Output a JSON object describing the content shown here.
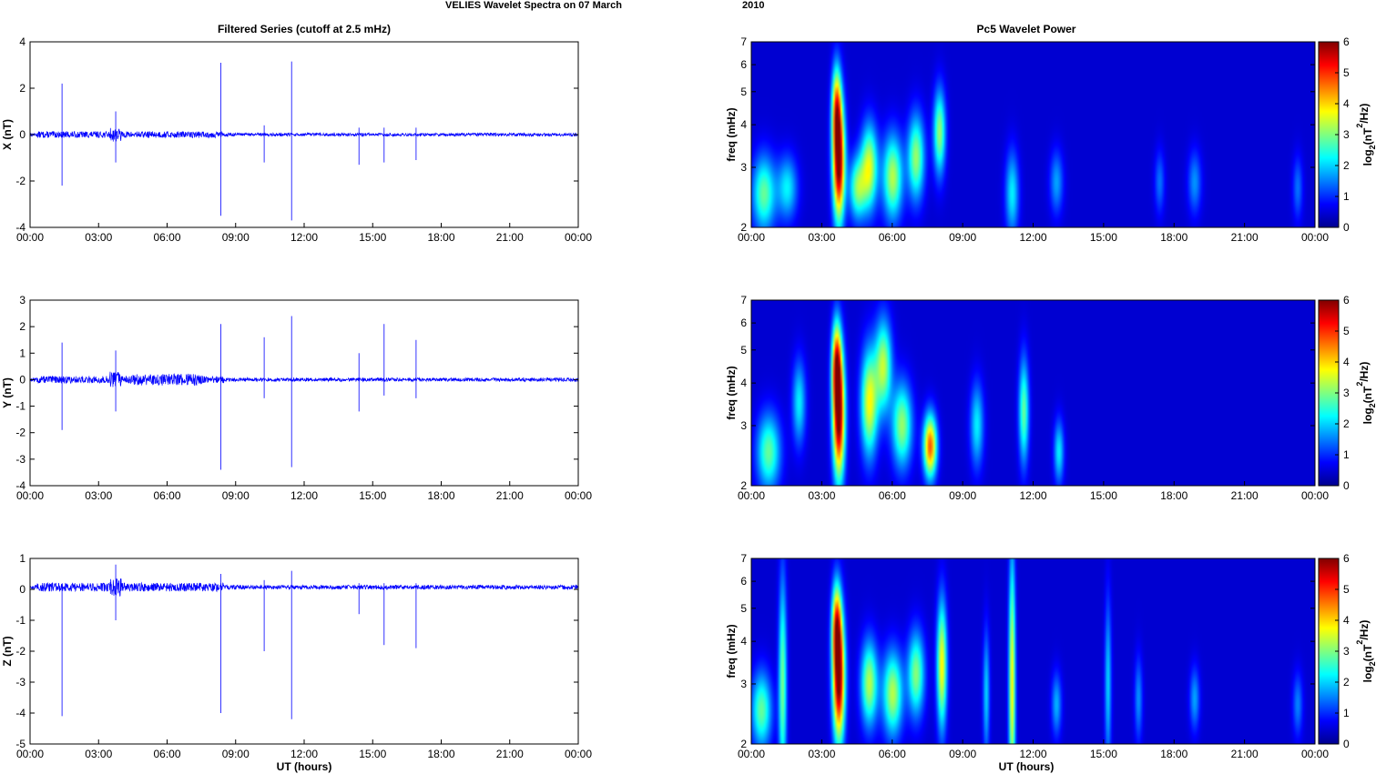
{
  "figure": {
    "title_left": "VELIES Wavelet Spectra on 07 March",
    "title_right": "2010",
    "left_panel_title": "Filtered Series (cutoff at 2.5 mHz)",
    "right_panel_title": "Pc5 Wavelet Power",
    "xlabel": "UT (hours)",
    "time_ticks": [
      "00:00",
      "03:00",
      "06:00",
      "09:00",
      "12:00",
      "15:00",
      "18:00",
      "21:00",
      "00:00"
    ],
    "colorbar_label": "log",
    "colorbar_sub": "2",
    "colorbar_unit_a": "(nT",
    "colorbar_sup": "2",
    "colorbar_unit_b": "/Hz)",
    "series_color": "#0000ff"
  },
  "chart_data": [
    {
      "type": "line",
      "component": "X",
      "ylabel": "X (nT)",
      "ylim": [
        -4,
        4
      ],
      "yticks": [
        "-4",
        "-2",
        "0",
        "2",
        "4"
      ],
      "xlim_hours": [
        0,
        24
      ],
      "spikes": [
        {
          "t": 1.4,
          "hi": 2.2,
          "lo": -2.2
        },
        {
          "t": 3.75,
          "hi": 1.0,
          "lo": -1.2
        },
        {
          "t": 8.35,
          "hi": 3.1,
          "lo": -3.5
        },
        {
          "t": 10.25,
          "hi": 0.4,
          "lo": -1.2
        },
        {
          "t": 11.45,
          "hi": 3.15,
          "lo": -3.7
        },
        {
          "t": 14.4,
          "hi": 0.3,
          "lo": -1.3
        },
        {
          "t": 15.5,
          "hi": 0.3,
          "lo": -1.2
        },
        {
          "t": 16.9,
          "hi": 0.3,
          "lo": -1.1
        }
      ]
    },
    {
      "type": "line",
      "component": "Y",
      "ylabel": "Y (nT)",
      "ylim": [
        -4,
        3
      ],
      "yticks": [
        "-4",
        "-3",
        "-2",
        "-1",
        "0",
        "1",
        "2",
        "3"
      ],
      "xlim_hours": [
        0,
        24
      ],
      "spikes": [
        {
          "t": 1.4,
          "hi": 1.4,
          "lo": -1.9
        },
        {
          "t": 3.75,
          "hi": 1.1,
          "lo": -1.2
        },
        {
          "t": 8.35,
          "hi": 2.1,
          "lo": -3.4
        },
        {
          "t": 10.25,
          "hi": 1.6,
          "lo": -0.7
        },
        {
          "t": 11.45,
          "hi": 2.4,
          "lo": -3.3
        },
        {
          "t": 14.4,
          "hi": 1.0,
          "lo": -1.2
        },
        {
          "t": 15.5,
          "hi": 2.1,
          "lo": -0.6
        },
        {
          "t": 16.9,
          "hi": 1.5,
          "lo": -0.7
        }
      ]
    },
    {
      "type": "line",
      "component": "Z",
      "ylabel": "Z (nT)",
      "ylim": [
        -5,
        1
      ],
      "yticks": [
        "-5",
        "-4",
        "-3",
        "-2",
        "-1",
        "0",
        "1"
      ],
      "xlim_hours": [
        0,
        24
      ],
      "spikes": [
        {
          "t": 1.4,
          "hi": 0.1,
          "lo": -4.1
        },
        {
          "t": 3.75,
          "hi": 0.8,
          "lo": -1.0
        },
        {
          "t": 8.35,
          "hi": 0.5,
          "lo": -4.0
        },
        {
          "t": 10.25,
          "hi": 0.3,
          "lo": -2.0
        },
        {
          "t": 11.45,
          "hi": 0.6,
          "lo": -4.2
        },
        {
          "t": 14.4,
          "hi": 0.2,
          "lo": -0.8
        },
        {
          "t": 15.5,
          "hi": 0.2,
          "lo": -1.8
        },
        {
          "t": 16.9,
          "hi": 0.2,
          "lo": -1.9
        }
      ]
    },
    {
      "type": "heatmap",
      "component": "X",
      "ylabel": "freq (mHz)",
      "ylim": [
        2,
        7
      ],
      "yscale": "log",
      "yticks": [
        "2",
        "3",
        "4",
        "5",
        "6",
        "7"
      ],
      "clim": [
        0,
        6
      ],
      "cticks": [
        "0",
        "1",
        "2",
        "3",
        "4",
        "5",
        "6"
      ],
      "blobs": [
        {
          "t": 3.7,
          "f": 3.1,
          "amp": 6.0,
          "dt": 0.18,
          "df": 0.28
        },
        {
          "t": 3.6,
          "f": 4.5,
          "amp": 3.5,
          "dt": 0.14,
          "df": 0.2
        },
        {
          "t": 5.0,
          "f": 3.0,
          "amp": 3.2,
          "dt": 0.25,
          "df": 0.2
        },
        {
          "t": 6.0,
          "f": 2.8,
          "amp": 3.0,
          "dt": 0.3,
          "df": 0.2
        },
        {
          "t": 7.0,
          "f": 3.2,
          "amp": 2.8,
          "dt": 0.25,
          "df": 0.2
        },
        {
          "t": 8.0,
          "f": 3.8,
          "amp": 2.8,
          "dt": 0.18,
          "df": 0.2
        },
        {
          "t": 4.5,
          "f": 2.6,
          "amp": 2.6,
          "dt": 0.25,
          "df": 0.15
        },
        {
          "t": 0.5,
          "f": 2.5,
          "amp": 2.5,
          "dt": 0.35,
          "df": 0.18
        },
        {
          "t": 1.5,
          "f": 2.6,
          "amp": 1.8,
          "dt": 0.3,
          "df": 0.15
        },
        {
          "t": 11.1,
          "f": 2.5,
          "amp": 1.8,
          "dt": 0.2,
          "df": 0.2
        },
        {
          "t": 13.0,
          "f": 2.7,
          "amp": 1.3,
          "dt": 0.2,
          "df": 0.15
        },
        {
          "t": 17.4,
          "f": 2.7,
          "amp": 1.0,
          "dt": 0.15,
          "df": 0.15
        },
        {
          "t": 18.9,
          "f": 2.7,
          "amp": 1.2,
          "dt": 0.2,
          "df": 0.15
        },
        {
          "t": 23.3,
          "f": 2.6,
          "amp": 1.0,
          "dt": 0.15,
          "df": 0.15
        }
      ]
    },
    {
      "type": "heatmap",
      "component": "Y",
      "ylabel": "freq (mHz)",
      "ylim": [
        2,
        7
      ],
      "yscale": "log",
      "yticks": [
        "2",
        "3",
        "4",
        "5",
        "6",
        "7"
      ],
      "clim": [
        0,
        6
      ],
      "cticks": [
        "0",
        "1",
        "2",
        "3",
        "4",
        "5",
        "6"
      ],
      "blobs": [
        {
          "t": 3.7,
          "f": 3.2,
          "amp": 6.0,
          "dt": 0.18,
          "df": 0.3
        },
        {
          "t": 3.6,
          "f": 4.6,
          "amp": 3.8,
          "dt": 0.14,
          "df": 0.2
        },
        {
          "t": 5.0,
          "f": 3.5,
          "amp": 3.4,
          "dt": 0.25,
          "df": 0.25
        },
        {
          "t": 5.6,
          "f": 4.5,
          "amp": 3.0,
          "dt": 0.25,
          "df": 0.22
        },
        {
          "t": 6.4,
          "f": 3.0,
          "amp": 2.8,
          "dt": 0.3,
          "df": 0.2
        },
        {
          "t": 7.6,
          "f": 2.6,
          "amp": 4.5,
          "dt": 0.2,
          "df": 0.15
        },
        {
          "t": 0.7,
          "f": 2.5,
          "amp": 2.5,
          "dt": 0.35,
          "df": 0.18
        },
        {
          "t": 2.0,
          "f": 3.5,
          "amp": 1.8,
          "dt": 0.2,
          "df": 0.2
        },
        {
          "t": 9.6,
          "f": 3.0,
          "amp": 1.8,
          "dt": 0.2,
          "df": 0.2
        },
        {
          "t": 11.6,
          "f": 3.3,
          "amp": 2.5,
          "dt": 0.15,
          "df": 0.25
        },
        {
          "t": 13.1,
          "f": 2.5,
          "amp": 1.8,
          "dt": 0.15,
          "df": 0.15
        }
      ]
    },
    {
      "type": "heatmap",
      "component": "Z",
      "ylabel": "freq (mHz)",
      "ylim": [
        2,
        7
      ],
      "yscale": "log",
      "yticks": [
        "2",
        "3",
        "4",
        "5",
        "6",
        "7"
      ],
      "clim": [
        0,
        6
      ],
      "cticks": [
        "0",
        "1",
        "2",
        "3",
        "4",
        "5",
        "6"
      ],
      "blobs": [
        {
          "t": 3.7,
          "f": 3.1,
          "amp": 6.0,
          "dt": 0.18,
          "df": 0.3
        },
        {
          "t": 3.6,
          "f": 4.5,
          "amp": 3.6,
          "dt": 0.14,
          "df": 0.2
        },
        {
          "t": 5.0,
          "f": 3.0,
          "amp": 3.0,
          "dt": 0.25,
          "df": 0.2
        },
        {
          "t": 6.0,
          "f": 2.8,
          "amp": 3.0,
          "dt": 0.3,
          "df": 0.2
        },
        {
          "t": 7.0,
          "f": 3.2,
          "amp": 2.7,
          "dt": 0.25,
          "df": 0.2
        },
        {
          "t": 8.1,
          "f": 3.4,
          "amp": 3.5,
          "dt": 0.15,
          "df": 0.3
        },
        {
          "t": 1.3,
          "f": 3.0,
          "amp": 2.6,
          "dt": 0.12,
          "df": 0.5
        },
        {
          "t": 0.4,
          "f": 2.5,
          "amp": 2.5,
          "dt": 0.3,
          "df": 0.18
        },
        {
          "t": 11.1,
          "f": 3.0,
          "amp": 3.5,
          "dt": 0.1,
          "df": 0.6
        },
        {
          "t": 10.0,
          "f": 2.8,
          "amp": 1.6,
          "dt": 0.1,
          "df": 0.3
        },
        {
          "t": 13.0,
          "f": 2.6,
          "amp": 1.4,
          "dt": 0.15,
          "df": 0.15
        },
        {
          "t": 15.2,
          "f": 3.0,
          "amp": 1.6,
          "dt": 0.1,
          "df": 0.4
        },
        {
          "t": 16.5,
          "f": 2.7,
          "amp": 1.2,
          "dt": 0.12,
          "df": 0.2
        },
        {
          "t": 18.9,
          "f": 2.7,
          "amp": 1.3,
          "dt": 0.15,
          "df": 0.15
        },
        {
          "t": 23.3,
          "f": 2.6,
          "amp": 1.1,
          "dt": 0.15,
          "df": 0.15
        }
      ]
    }
  ]
}
